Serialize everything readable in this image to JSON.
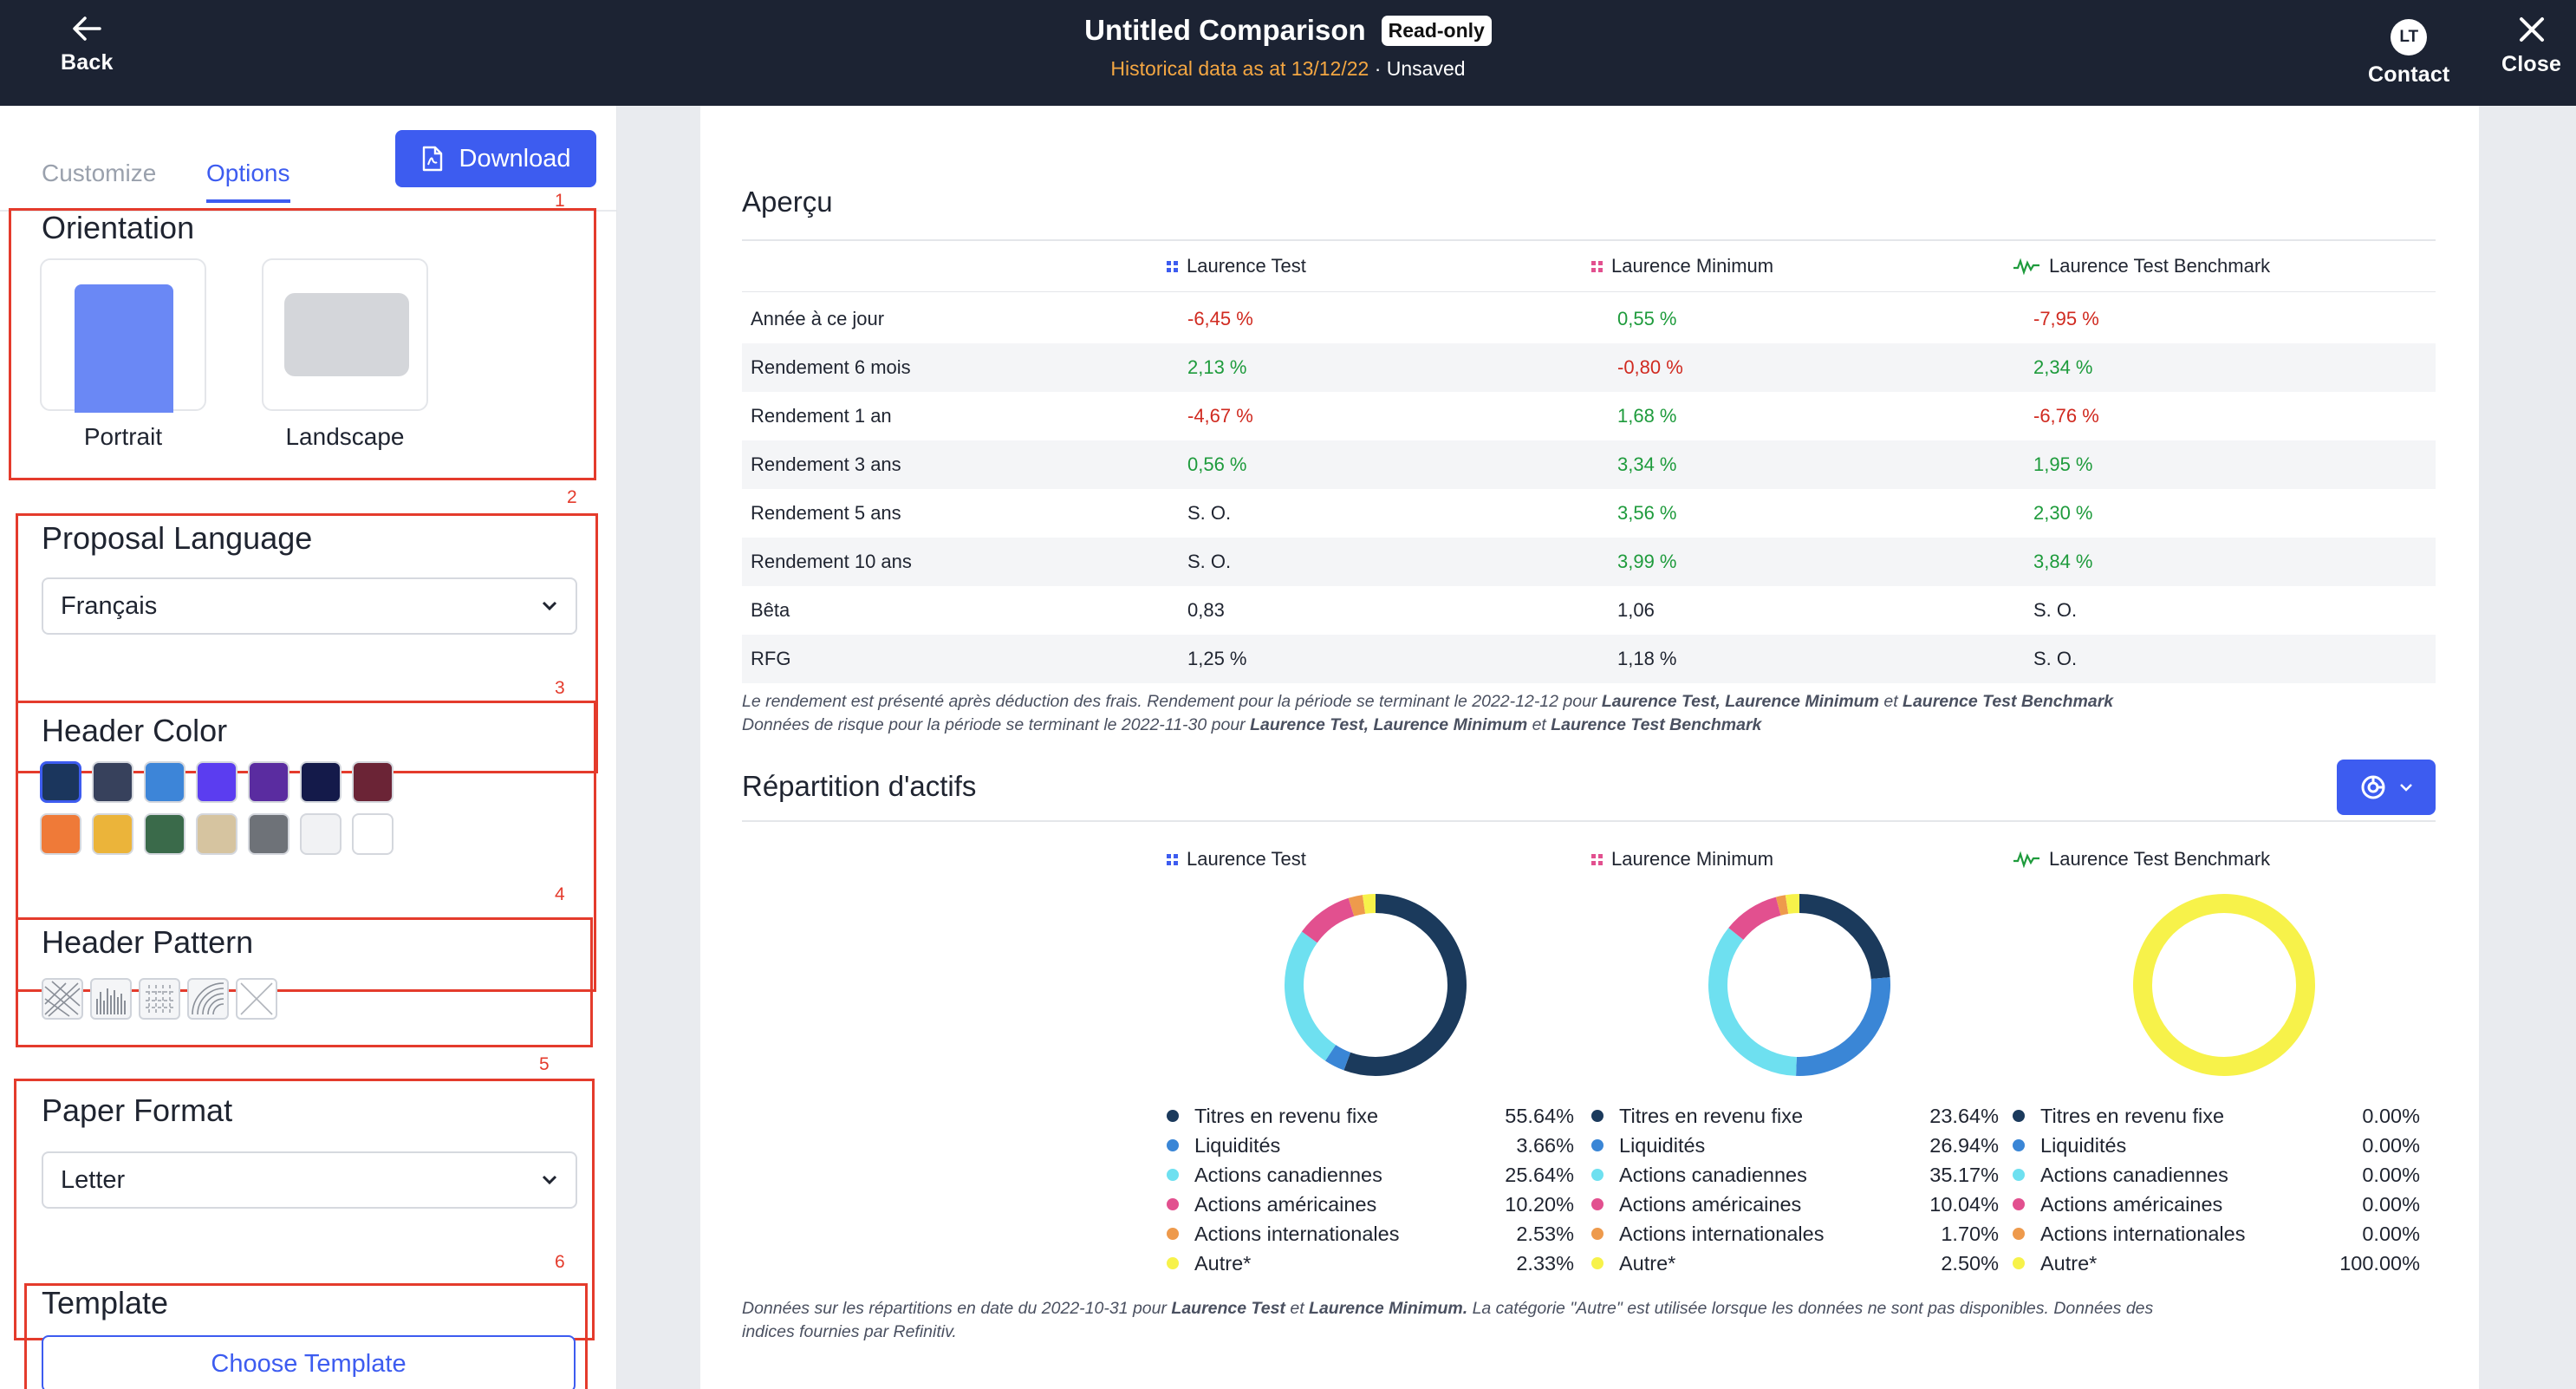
{
  "topbar": {
    "back_label": "Back",
    "title": "Untitled Comparison",
    "badge": "Read-only",
    "historical": "Historical data as at 13/12/22",
    "separator": "·",
    "status": "Unsaved",
    "contact_label": "Contact",
    "contact_initials": "LT",
    "close_label": "Close"
  },
  "sidebar": {
    "tabs": [
      {
        "label": "Customize"
      },
      {
        "label": "Options"
      }
    ],
    "download_label": "Download",
    "orientation": {
      "title": "Orientation",
      "options": [
        {
          "label": "Portrait",
          "selected": true
        },
        {
          "label": "Landscape",
          "selected": false
        }
      ]
    },
    "language": {
      "title": "Proposal Language",
      "value": "Français"
    },
    "header_color": {
      "title": "Header Color",
      "selected": 0,
      "colors": [
        "#1b365d",
        "#37415c",
        "#3d85d8",
        "#5b3df0",
        "#5a2ca0",
        "#141a4a",
        "#6b2436",
        "#ef7a38",
        "#ebb43a",
        "#3a6a4a",
        "#d6c4a0",
        "#6e7278",
        "#f1f2f4",
        "#ffffff"
      ]
    },
    "header_pattern": {
      "title": "Header Pattern",
      "patterns": [
        "crosshatch-pattern",
        "bars-pattern",
        "grid-pattern",
        "arcs-pattern",
        "none-pattern"
      ]
    },
    "paper_format": {
      "title": "Paper Format",
      "value": "Letter"
    },
    "template": {
      "title": "Template",
      "button_label": "Choose Template"
    },
    "annotations": [
      "1",
      "2",
      "3",
      "4",
      "5",
      "6"
    ]
  },
  "overview": {
    "title": "Aperçu",
    "columns": [
      "Laurence Test",
      "Laurence Minimum",
      "Laurence Test Benchmark"
    ],
    "rows": [
      {
        "label": "Année à ce jour",
        "values": [
          "-6,45 %",
          "0,55 %",
          "-7,95 %"
        ],
        "signs": [
          "neg",
          "pos",
          "neg"
        ]
      },
      {
        "label": "Rendement 6 mois",
        "values": [
          "2,13 %",
          "-0,80 %",
          "2,34 %"
        ],
        "signs": [
          "pos",
          "neg",
          "pos"
        ]
      },
      {
        "label": "Rendement 1 an",
        "values": [
          "-4,67 %",
          "1,68 %",
          "-6,76 %"
        ],
        "signs": [
          "neg",
          "pos",
          "neg"
        ]
      },
      {
        "label": "Rendement 3 ans",
        "values": [
          "0,56 %",
          "3,34 %",
          "1,95 %"
        ],
        "signs": [
          "pos",
          "pos",
          "pos"
        ]
      },
      {
        "label": "Rendement 5 ans",
        "values": [
          "S. O.",
          "3,56 %",
          "2,30 %"
        ],
        "signs": [
          "",
          "pos",
          "pos"
        ]
      },
      {
        "label": "Rendement 10 ans",
        "values": [
          "S. O.",
          "3,99 %",
          "3,84 %"
        ],
        "signs": [
          "",
          "pos",
          "pos"
        ]
      },
      {
        "label": "Bêta",
        "values": [
          "0,83",
          "1,06",
          "S. O."
        ],
        "signs": [
          "",
          "",
          ""
        ]
      },
      {
        "label": "RFG",
        "values": [
          "1,25 %",
          "1,18 %",
          "S. O."
        ],
        "signs": [
          "",
          "",
          ""
        ]
      }
    ],
    "note_line1_prefix": "Le rendement est présenté après déduction des frais. Rendement pour la période se terminant le 2022-12-12 pour",
    "note_line1_a": "Laurence Test,",
    "note_line1_b": "Laurence Minimum",
    "note_et": "et",
    "note_line1_c": "Laurence Test Benchmark",
    "note_line2_prefix": "Données de risque pour la période se terminant le 2022-11-30 pour",
    "note_line2_a": "Laurence Test,",
    "note_line2_b": "Laurence Minimum",
    "note_line2_c": "Laurence Test Benchmark"
  },
  "allocation": {
    "title": "Répartition d'actifs",
    "note_prefix": "Données sur les répartitions en date du 2022-10-31 pour",
    "note_a": "Laurence Test",
    "note_et": "et",
    "note_b": "Laurence Minimum.",
    "note_suffix": "La catégorie \"Autre\" est utilisée lorsque les données ne sont pas disponibles. Données des",
    "note_line2": "indices fournies par Refinitiv."
  },
  "chart_data": [
    {
      "type": "pie",
      "title": "Laurence Test",
      "categories": [
        "Titres en revenu fixe",
        "Liquidités",
        "Actions canadiennes",
        "Actions américaines",
        "Actions internationales",
        "Autre*"
      ],
      "values": [
        55.64,
        3.66,
        25.64,
        10.2,
        2.53,
        2.33
      ],
      "labels": [
        "55.64%",
        "3.66%",
        "25.64%",
        "10.20%",
        "2.53%",
        "2.33%"
      ],
      "colors": [
        "#1b3a5c",
        "#3a86d6",
        "#6ee0f0",
        "#e2508f",
        "#ee9a4c",
        "#f7f24a"
      ]
    },
    {
      "type": "pie",
      "title": "Laurence Minimum",
      "categories": [
        "Titres en revenu fixe",
        "Liquidités",
        "Actions canadiennes",
        "Actions américaines",
        "Actions internationales",
        "Autre*"
      ],
      "values": [
        23.64,
        26.94,
        35.17,
        10.04,
        1.7,
        2.5
      ],
      "labels": [
        "23.64%",
        "26.94%",
        "35.17%",
        "10.04%",
        "1.70%",
        "2.50%"
      ],
      "colors": [
        "#1b3a5c",
        "#3a86d6",
        "#6ee0f0",
        "#e2508f",
        "#ee9a4c",
        "#f7f24a"
      ]
    },
    {
      "type": "pie",
      "title": "Laurence Test Benchmark",
      "categories": [
        "Titres en revenu fixe",
        "Liquidités",
        "Actions canadiennes",
        "Actions américaines",
        "Actions internationales",
        "Autre*"
      ],
      "values": [
        0.0,
        0.0,
        0.0,
        0.0,
        0.0,
        100.0
      ],
      "labels": [
        "0.00%",
        "0.00%",
        "0.00%",
        "0.00%",
        "0.00%",
        "100.00%"
      ],
      "colors": [
        "#1b3a5c",
        "#3a86d6",
        "#6ee0f0",
        "#e2508f",
        "#ee9a4c",
        "#f7f24a"
      ]
    }
  ],
  "colors": {
    "accent": "#3d5cf0",
    "topbar": "#1c2333",
    "negative": "#d02a20",
    "positive": "#1e9b3c",
    "annotation": "#e43b2c",
    "historical": "#f5a742"
  }
}
